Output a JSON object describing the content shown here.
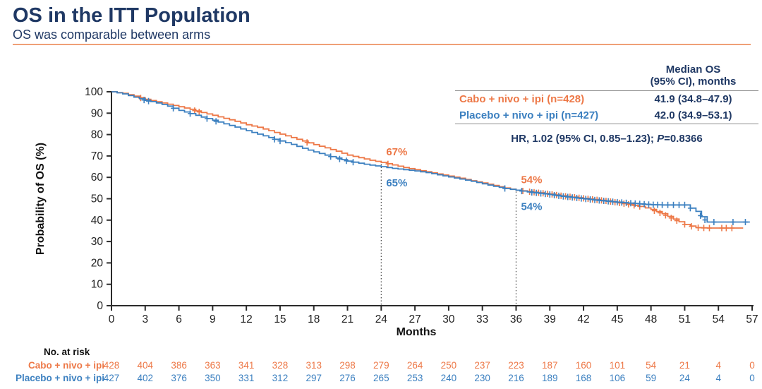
{
  "header": {
    "title": "OS in the ITT Population",
    "subtitle": "OS was comparable between arms"
  },
  "colors": {
    "navy": "#1F3864",
    "orange": "#ED7847",
    "blue": "#3C80C0",
    "rule_orange": "#EFA077",
    "axis": "#2b2b2b",
    "divider_gray": "#8c8c8c"
  },
  "legend_table": {
    "header_line1": "Median OS",
    "header_line2": "(95% CI), months",
    "rows": [
      {
        "label": "Cabo + nivo + ipi (n=428)",
        "value": "41.9 (34.8–47.9)",
        "color": "#ED7847"
      },
      {
        "label": "Placebo + nivo + ipi (n=427)",
        "value": "42.0 (34.9–53.1)",
        "color": "#3C80C0"
      }
    ],
    "hr_prefix": "HR, 1.02 (95% CI, 0.85–1.23); ",
    "p_label": "P",
    "p_value": "=0.8366"
  },
  "chart_data": {
    "type": "line",
    "subtype": "kaplan-meier-step",
    "title": "",
    "xlabel": "Months",
    "ylabel": "Probability of OS (%)",
    "xlim": [
      0,
      57
    ],
    "xticks": [
      0,
      3,
      6,
      9,
      12,
      15,
      18,
      21,
      24,
      27,
      30,
      33,
      36,
      39,
      42,
      45,
      48,
      51,
      54,
      57
    ],
    "ylim": [
      0,
      100
    ],
    "yticks": [
      0,
      10,
      20,
      30,
      40,
      50,
      60,
      70,
      80,
      90,
      100
    ],
    "grid": false,
    "legend_position": "top-right",
    "series": [
      {
        "name": "Cabo + nivo + ipi",
        "color": "#ED7847",
        "end_month": 56.2,
        "monthly_pct": [
          100,
          99.3,
          98,
          96.5,
          95.3,
          94.2,
          93,
          91.8,
          90.3,
          89,
          87.6,
          86.2,
          84.6,
          83.4,
          81.8,
          80.2,
          78.6,
          77,
          75.3,
          73.8,
          72.2,
          70.4,
          69.2,
          68,
          67,
          65.8,
          64.6,
          63.6,
          62.6,
          61.6,
          60.6,
          59.6,
          58.4,
          57.4,
          56.2,
          55,
          54,
          53.4,
          52.8,
          52.2,
          51.4,
          50.8,
          50.2,
          49.6,
          49,
          48.2,
          47.4,
          46.4,
          45,
          43,
          40.5,
          38,
          36.5,
          36.3,
          36.3,
          36.3,
          36.3
        ],
        "censor_months": [
          2.6,
          7.4,
          7.8,
          17.4,
          24.6,
          36.6,
          37.2,
          37.6,
          38.0,
          38.4,
          38.8,
          39.2,
          39.6,
          40.0,
          40.4,
          40.8,
          41.2,
          41.6,
          42.0,
          42.4,
          42.8,
          43.2,
          43.6,
          44.0,
          44.4,
          44.8,
          45.2,
          45.6,
          46.0,
          46.5,
          47.0,
          48.3,
          48.8,
          49.3,
          49.8,
          50.3,
          51.0,
          51.6,
          52.2,
          52.7,
          53.2,
          54.3,
          54.7,
          55.2
        ]
      },
      {
        "name": "Placebo + nivo + ipi",
        "color": "#3C80C0",
        "end_month": 56.8,
        "monthly_pct": [
          100,
          99,
          97.5,
          96,
          94.8,
          93.3,
          91.3,
          89.8,
          88.2,
          86.7,
          85,
          83.5,
          81.8,
          80.2,
          78.6,
          77,
          75.4,
          73.6,
          71.9,
          70.4,
          69,
          67.6,
          66.6,
          65.7,
          65,
          64.2,
          63.6,
          63,
          62.2,
          61.2,
          60.2,
          59.2,
          58.2,
          57,
          55.8,
          54.8,
          54,
          53.2,
          52.6,
          52,
          51.2,
          50.6,
          50,
          49.4,
          48.9,
          48.4,
          48,
          47.6,
          47.2,
          47.1,
          47.1,
          47.1,
          44.1,
          39.1,
          39.1,
          39.1,
          39.1,
          39.1,
          39.1
        ],
        "censor_months": [
          2.9,
          3.3,
          5.5,
          7.0,
          8.5,
          9.3,
          14.5,
          15.0,
          19.5,
          20.3,
          20.9,
          21.5,
          35.0,
          36.5,
          37.4,
          37.8,
          38.2,
          38.6,
          39.0,
          39.4,
          39.8,
          40.2,
          40.6,
          41.0,
          41.4,
          41.8,
          42.2,
          42.6,
          43.0,
          43.4,
          43.8,
          44.2,
          44.6,
          45.0,
          45.4,
          45.8,
          46.2,
          46.6,
          47.0,
          47.4,
          47.8,
          48.2,
          48.6,
          49.0,
          49.5,
          50.0,
          50.5,
          51.0,
          51.5,
          52.4,
          52.8,
          53.6,
          55.3,
          56.4
        ]
      }
    ],
    "reference_lines": [
      {
        "month": 24
      },
      {
        "month": 36
      }
    ],
    "annotations": [
      {
        "text": "67%",
        "month": 24,
        "pct": 67,
        "placement": "above",
        "color": "#ED7847"
      },
      {
        "text": "65%",
        "month": 24,
        "pct": 65,
        "placement": "below",
        "color": "#3C80C0"
      },
      {
        "text": "54%",
        "month": 36,
        "pct": 54,
        "placement": "above",
        "color": "#ED7847"
      },
      {
        "text": "54%",
        "month": 36,
        "pct": 54,
        "placement": "below",
        "color": "#3C80C0"
      }
    ]
  },
  "at_risk": {
    "title": "No. at risk",
    "months": [
      0,
      3,
      6,
      9,
      12,
      15,
      18,
      21,
      24,
      27,
      30,
      33,
      36,
      39,
      42,
      45,
      48,
      51,
      54,
      57
    ],
    "rows": [
      {
        "label": "Cabo + nivo + ipi",
        "color": "#ED7847",
        "values": [
          428,
          404,
          386,
          363,
          341,
          328,
          313,
          298,
          279,
          264,
          250,
          237,
          223,
          187,
          160,
          101,
          54,
          21,
          4,
          0
        ]
      },
      {
        "label": "Placebo + nivo + ipi",
        "color": "#3C80C0",
        "values": [
          427,
          402,
          376,
          350,
          331,
          312,
          297,
          276,
          265,
          253,
          240,
          230,
          216,
          189,
          168,
          106,
          59,
          24,
          4,
          0
        ]
      }
    ]
  }
}
